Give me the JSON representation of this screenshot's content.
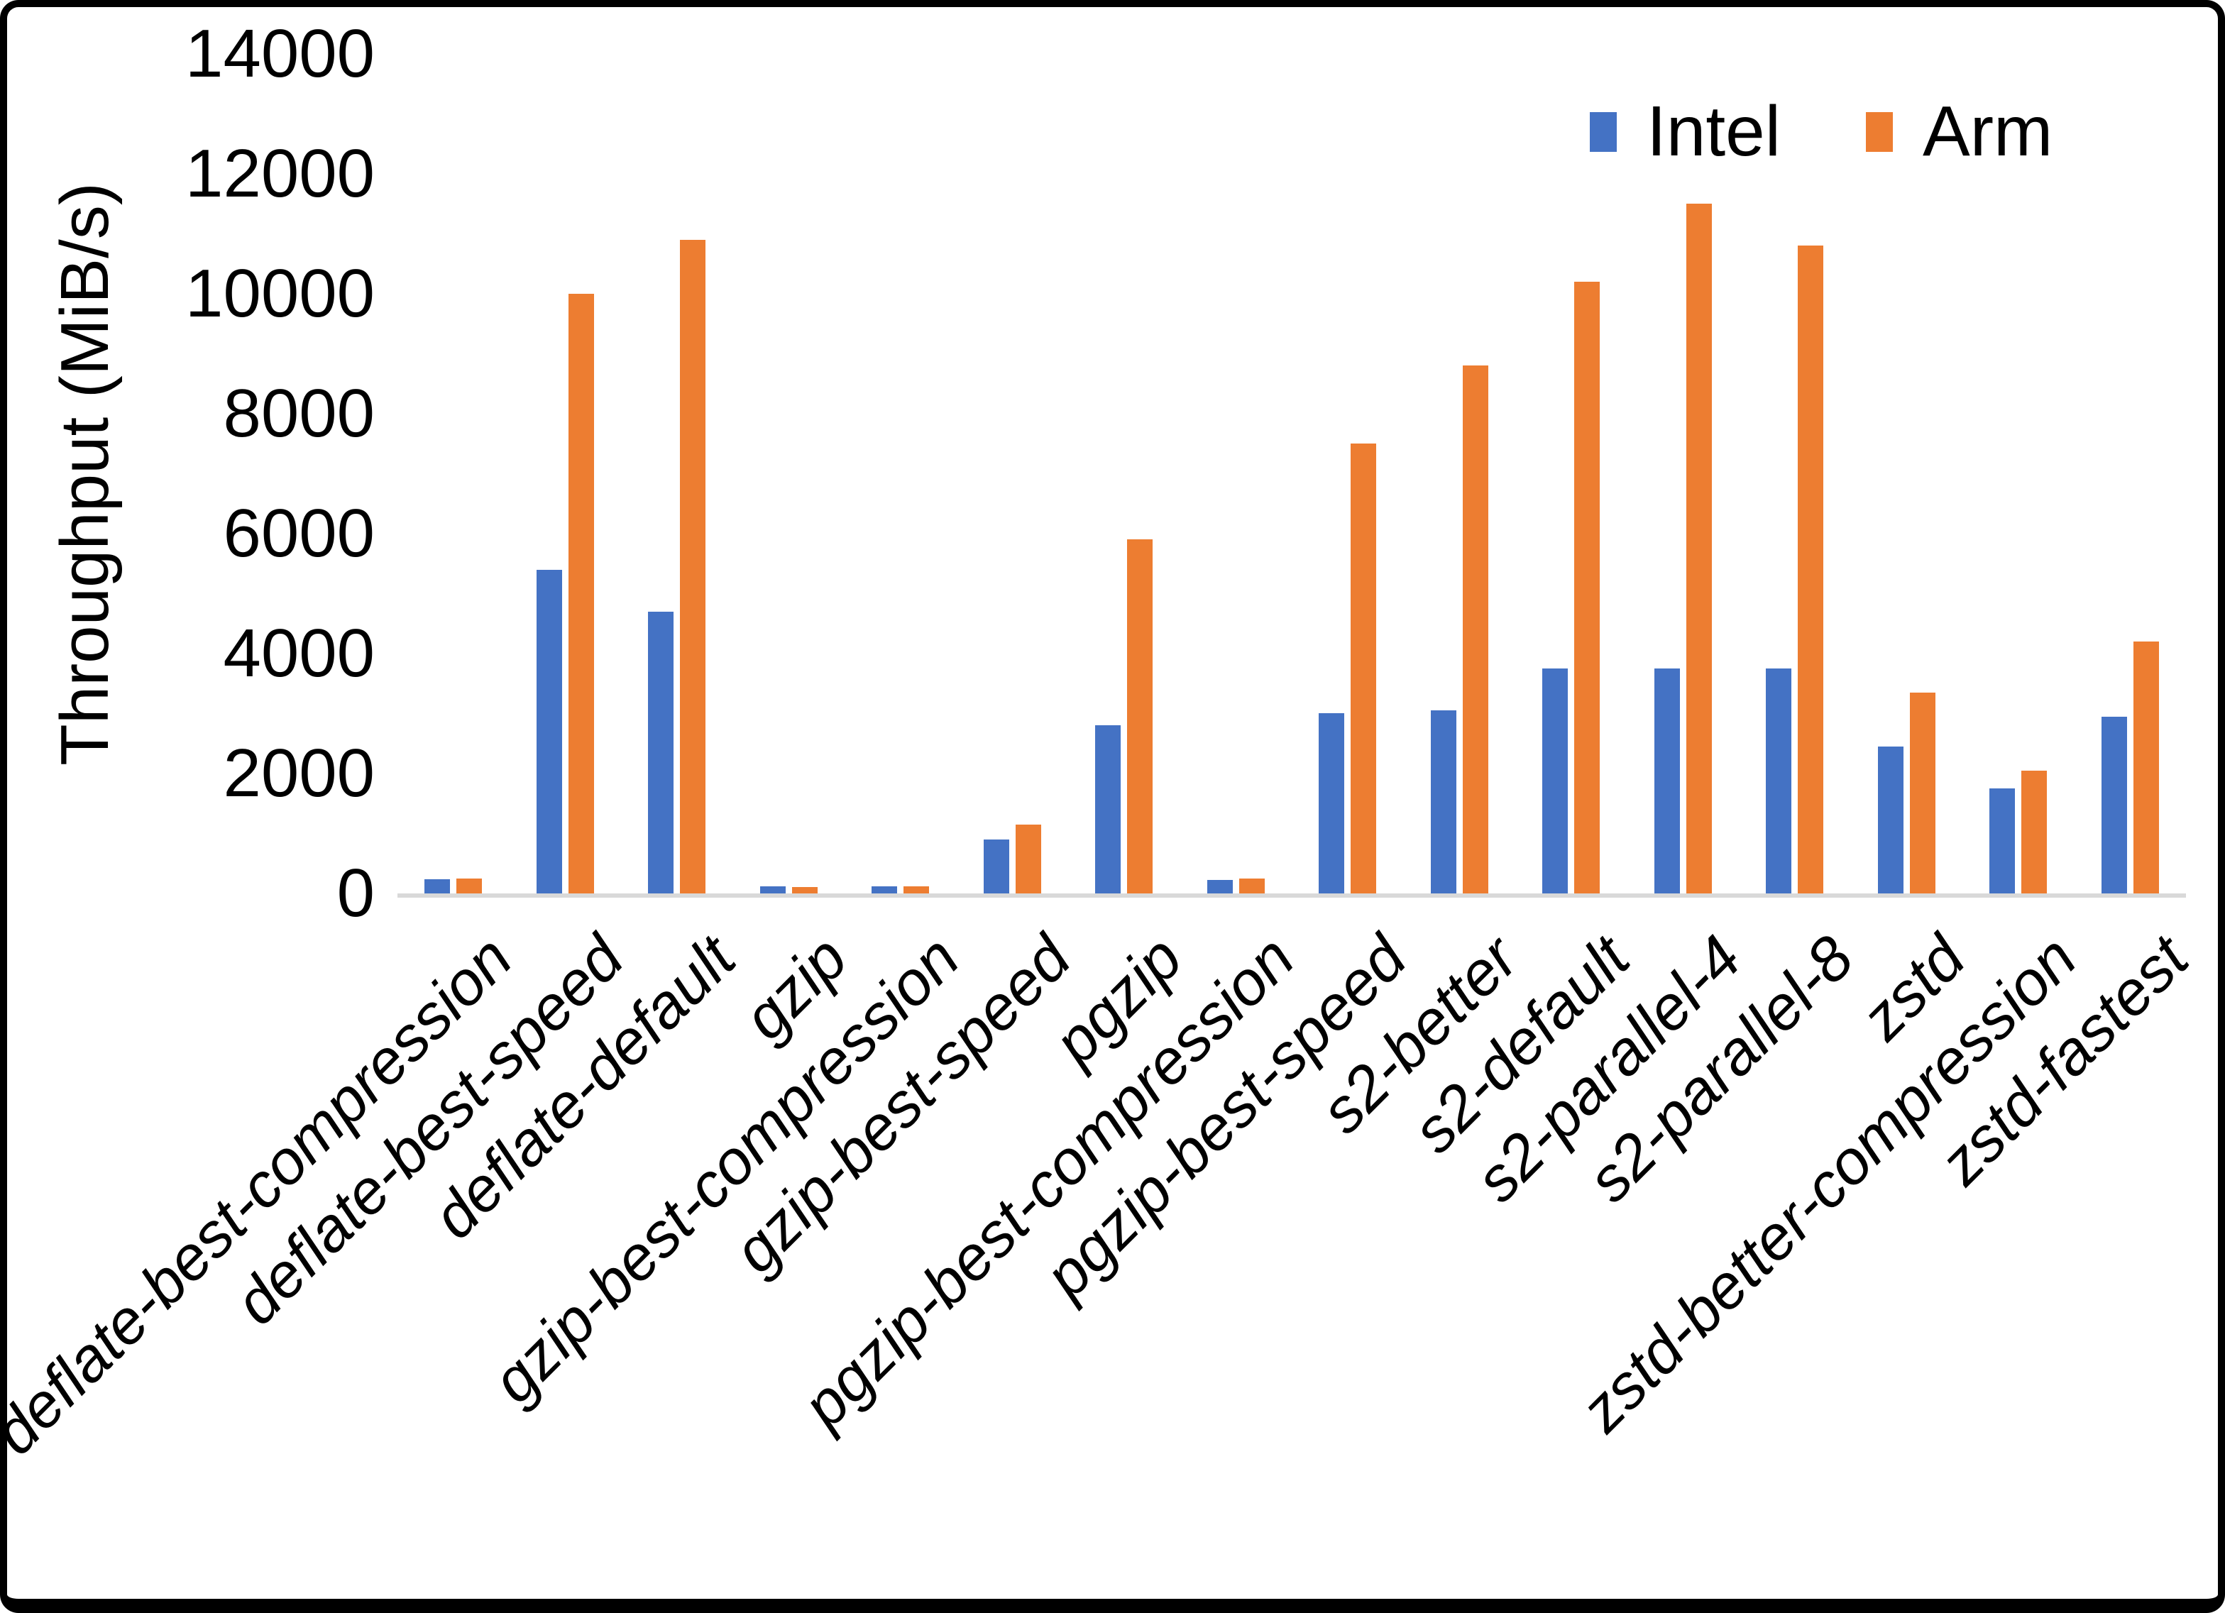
{
  "chart_data": {
    "type": "bar",
    "title": "",
    "xlabel": "",
    "ylabel": "Throughput (MiB/s)",
    "ylim": [
      0,
      14000
    ],
    "ytick_step": 2000,
    "yticks": [
      0,
      2000,
      4000,
      6000,
      8000,
      10000,
      12000,
      14000
    ],
    "grid": false,
    "legend_position": "top-right",
    "categories": [
      "deflate-best-compression",
      "deflate-best-speed",
      "deflate-default",
      "gzip",
      "gzip-best-compression",
      "gzip-best-speed",
      "pgzip",
      "pgzip-best-compression",
      "pgzip-best-speed",
      "s2-better",
      "s2-default",
      "s2-parallel-4",
      "s2-parallel-8",
      "zstd",
      "zstd-better-compression",
      "zstd-fastest"
    ],
    "series": [
      {
        "name": "Intel",
        "color": "#4472C4",
        "values": [
          240,
          5400,
          4700,
          120,
          120,
          900,
          2800,
          230,
          3000,
          3050,
          3750,
          3750,
          3750,
          2450,
          1750,
          2950
        ]
      },
      {
        "name": "Arm",
        "color": "#ED7D31",
        "values": [
          250,
          10000,
          10900,
          110,
          115,
          1150,
          5900,
          250,
          7500,
          8800,
          10200,
          11500,
          10800,
          3350,
          2050,
          4200
        ]
      }
    ]
  },
  "axis": {
    "y_title": "Throughput (MiB/s)",
    "baseline_color": "#D9D9D9"
  },
  "legend": {
    "items": [
      {
        "label": "Intel",
        "color": "#4472C4"
      },
      {
        "label": "Arm",
        "color": "#ED7D31"
      }
    ]
  }
}
